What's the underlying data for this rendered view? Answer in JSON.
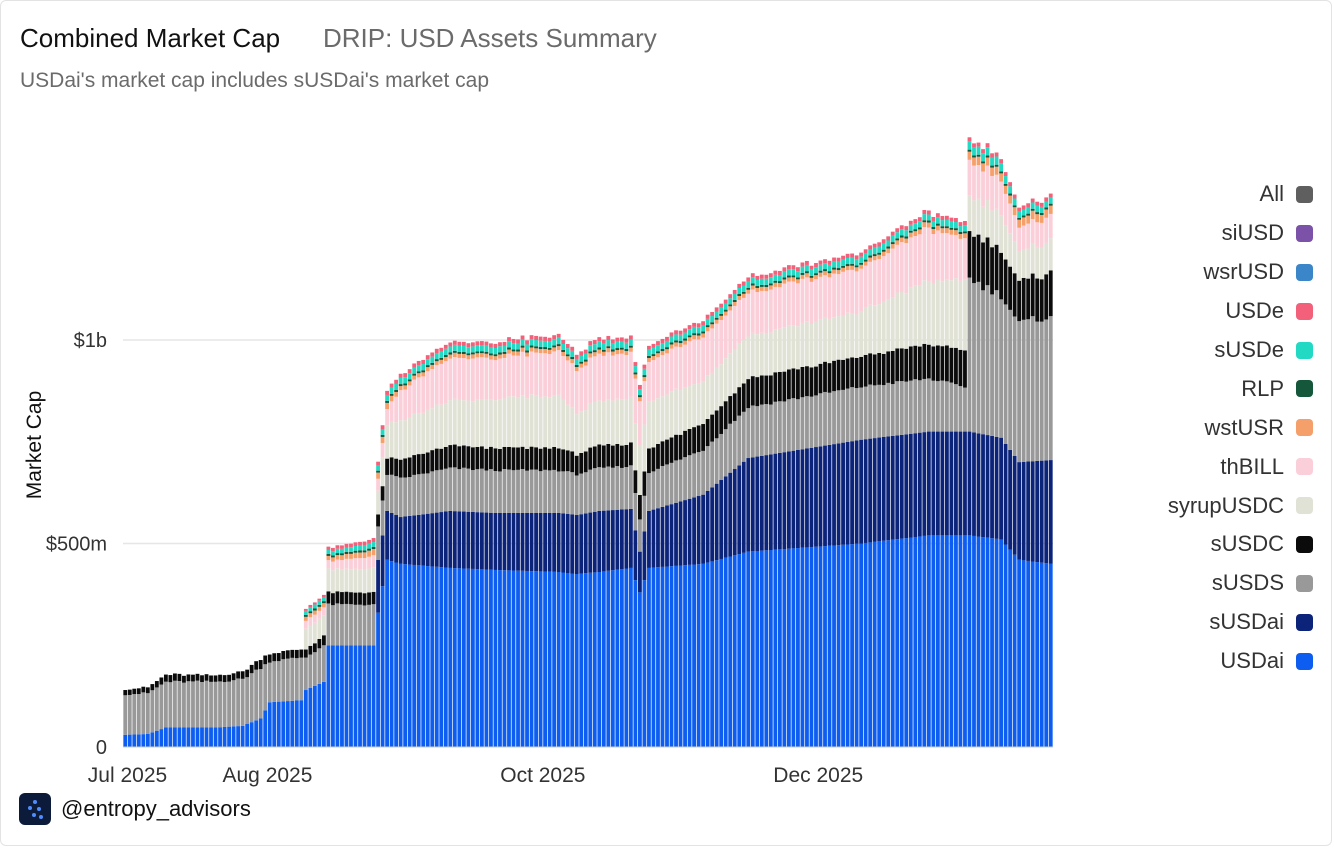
{
  "header": {
    "title": "Combined Market Cap",
    "subtitle": "DRIP: USD Assets Summary",
    "note": "USDai's market cap includes sUSDai's market cap"
  },
  "footer": {
    "handle": "@entropy_advisors",
    "logo_icon": "entropy-logo-icon"
  },
  "legend": [
    {
      "label": "All",
      "color": "#5f5f5f"
    },
    {
      "label": "siUSD",
      "color": "#7b52a8"
    },
    {
      "label": "wsrUSD",
      "color": "#3a86c8"
    },
    {
      "label": "USDe",
      "color": "#f2607a"
    },
    {
      "label": "sUSDe",
      "color": "#22d9c4"
    },
    {
      "label": "RLP",
      "color": "#14573a"
    },
    {
      "label": "wstUSR",
      "color": "#f5a06a"
    },
    {
      "label": "thBILL",
      "color": "#fbcfd9"
    },
    {
      "label": "syrupUSDC",
      "color": "#e1e2d6"
    },
    {
      "label": "sUSDC",
      "color": "#0b0b0b"
    },
    {
      "label": "sUSDS",
      "color": "#999999"
    },
    {
      "label": "sUSDai",
      "color": "#0c237a"
    },
    {
      "label": "USDai",
      "color": "#0d5ef0"
    }
  ],
  "chart_data": {
    "type": "bar",
    "stacked": true,
    "title": "Combined Market Cap",
    "xlabel": "",
    "ylabel": "Market Cap",
    "ylim": [
      0,
      1500
    ],
    "yunit": "$M",
    "yticks": [
      {
        "value": 0,
        "label": "0"
      },
      {
        "value": 500,
        "label": "$500m"
      },
      {
        "value": 1000,
        "label": "$1b"
      }
    ],
    "xticks": [
      {
        "value": "2025-07-01",
        "label": "Jul 2025"
      },
      {
        "value": "2025-08-01",
        "label": "Aug 2025"
      },
      {
        "value": "2025-10-01",
        "label": "Oct 2025"
      },
      {
        "value": "2025-12-01",
        "label": "Dec 2025"
      }
    ],
    "x_start": "2025-06-30",
    "x_end": "2026-01-21",
    "keypoints": [
      {
        "date": "2025-06-30",
        "USDai": 30,
        "sUSDai": 0,
        "sUSDS": 100,
        "sUSDC": 13,
        "syrupUSDC": 0,
        "thBILL": 0,
        "wstUSR": 0,
        "RLP": 0,
        "sUSDe": 0,
        "USDe": 0,
        "wsrUSD": 0,
        "siUSD": 0,
        "All": 0
      },
      {
        "date": "2025-07-05",
        "USDai": 32,
        "sUSDai": 0,
        "sUSDS": 100,
        "sUSDC": 14,
        "syrupUSDC": 0,
        "thBILL": 0,
        "wstUSR": 0,
        "RLP": 0,
        "sUSDe": 0,
        "USDe": 0,
        "wsrUSD": 0,
        "siUSD": 0,
        "All": 0
      },
      {
        "date": "2025-07-09",
        "USDai": 48,
        "sUSDai": 0,
        "sUSDS": 112,
        "sUSDC": 18,
        "syrupUSDC": 0,
        "thBILL": 0,
        "wstUSR": 0,
        "RLP": 0,
        "sUSDe": 0,
        "USDe": 0,
        "wsrUSD": 0,
        "siUSD": 0,
        "All": 0
      },
      {
        "date": "2025-07-20",
        "USDai": 48,
        "sUSDai": 0,
        "sUSDS": 112,
        "sUSDC": 16,
        "syrupUSDC": 0,
        "thBILL": 0,
        "wstUSR": 0,
        "RLP": 0,
        "sUSDe": 0,
        "USDe": 0,
        "wsrUSD": 0,
        "siUSD": 0,
        "All": 0
      },
      {
        "date": "2025-07-26",
        "USDai": 52,
        "sUSDai": 0,
        "sUSDS": 115,
        "sUSDC": 18,
        "syrupUSDC": 0,
        "thBILL": 0,
        "wstUSR": 0,
        "RLP": 0,
        "sUSDe": 0,
        "USDe": 0,
        "wsrUSD": 0,
        "siUSD": 0,
        "All": 0
      },
      {
        "date": "2025-07-30",
        "USDai": 70,
        "sUSDai": 0,
        "sUSDS": 125,
        "sUSDC": 22,
        "syrupUSDC": 0,
        "thBILL": 0,
        "wstUSR": 0,
        "RLP": 0,
        "sUSDe": 0,
        "USDe": 0,
        "wsrUSD": 0,
        "siUSD": 0,
        "All": 0
      },
      {
        "date": "2025-08-01",
        "USDai": 110,
        "sUSDai": 0,
        "sUSDS": 100,
        "sUSDC": 20,
        "syrupUSDC": 0,
        "thBILL": 0,
        "wstUSR": 0,
        "RLP": 0,
        "sUSDe": 0,
        "USDe": 0,
        "wsrUSD": 0,
        "siUSD": 0,
        "All": 0
      },
      {
        "date": "2025-08-08",
        "USDai": 115,
        "sUSDai": 0,
        "sUSDS": 105,
        "sUSDC": 20,
        "syrupUSDC": 0,
        "thBILL": 0,
        "wstUSR": 0,
        "RLP": 0,
        "sUSDe": 0,
        "USDe": 0,
        "wsrUSD": 0,
        "siUSD": 0,
        "All": 0
      },
      {
        "date": "2025-08-09",
        "USDai": 140,
        "sUSDai": 0,
        "sUSDS": 80,
        "sUSDC": 20,
        "syrupUSDC": 50,
        "thBILL": 20,
        "wstUSR": 10,
        "RLP": 5,
        "sUSDe": 10,
        "USDe": 5,
        "wsrUSD": 0,
        "siUSD": 0,
        "All": 0
      },
      {
        "date": "2025-08-13",
        "USDai": 160,
        "sUSDai": 0,
        "sUSDS": 90,
        "sUSDC": 25,
        "syrupUSDC": 50,
        "thBILL": 20,
        "wstUSR": 10,
        "RLP": 5,
        "sUSDe": 10,
        "USDe": 5,
        "wsrUSD": 0,
        "siUSD": 0,
        "All": 0
      },
      {
        "date": "2025-08-14",
        "USDai": 250,
        "sUSDai": 0,
        "sUSDS": 100,
        "sUSDC": 30,
        "syrupUSDC": 55,
        "thBILL": 20,
        "wstUSR": 10,
        "RLP": 5,
        "sUSDe": 10,
        "USDe": 8,
        "wsrUSD": 0,
        "siUSD": 0,
        "All": 0
      },
      {
        "date": "2025-08-24",
        "USDai": 250,
        "sUSDai": 0,
        "sUSDS": 100,
        "sUSDC": 30,
        "syrupUSDC": 60,
        "thBILL": 30,
        "wstUSR": 15,
        "RLP": 5,
        "sUSDe": 12,
        "USDe": 10,
        "wsrUSD": 0,
        "siUSD": 0,
        "All": 0
      },
      {
        "date": "2025-08-25",
        "USDai": 330,
        "sUSDai": 130,
        "sUSDS": 80,
        "sUSDC": 30,
        "syrupUSDC": 60,
        "thBILL": 30,
        "wstUSR": 15,
        "RLP": 5,
        "sUSDe": 12,
        "USDe": 10,
        "wsrUSD": 0,
        "siUSD": 0,
        "All": 0
      },
      {
        "date": "2025-08-27",
        "USDai": 460,
        "sUSDai": 120,
        "sUSDS": 90,
        "sUSDC": 40,
        "syrupUSDC": 80,
        "thBILL": 40,
        "wstUSR": 15,
        "RLP": 5,
        "sUSDe": 15,
        "USDe": 10,
        "wsrUSD": 0,
        "siUSD": 0,
        "All": 0
      },
      {
        "date": "2025-08-30",
        "USDai": 450,
        "sUSDai": 115,
        "sUSDS": 95,
        "sUSDC": 45,
        "syrupUSDC": 95,
        "thBILL": 75,
        "wstUSR": 10,
        "RLP": 5,
        "sUSDe": 15,
        "USDe": 10,
        "wsrUSD": 0,
        "siUSD": 0,
        "All": 0
      },
      {
        "date": "2025-09-10",
        "USDai": 440,
        "sUSDai": 140,
        "sUSDS": 105,
        "sUSDC": 55,
        "syrupUSDC": 110,
        "thBILL": 105,
        "wstUSR": 10,
        "RLP": 5,
        "sUSDe": 15,
        "USDe": 10,
        "wsrUSD": 0,
        "siUSD": 0,
        "All": 0
      },
      {
        "date": "2025-09-20",
        "USDai": 435,
        "sUSDai": 140,
        "sUSDS": 105,
        "sUSDC": 55,
        "syrupUSDC": 120,
        "thBILL": 100,
        "wstUSR": 10,
        "RLP": 5,
        "sUSDe": 15,
        "USDe": 10,
        "wsrUSD": 0,
        "siUSD": 0,
        "All": 0
      },
      {
        "date": "2025-10-04",
        "USDai": 430,
        "sUSDai": 145,
        "sUSDS": 105,
        "sUSDC": 55,
        "syrupUSDC": 130,
        "thBILL": 110,
        "wstUSR": 10,
        "RLP": 5,
        "sUSDe": 15,
        "USDe": 10,
        "wsrUSD": 0,
        "siUSD": 0,
        "All": 0
      },
      {
        "date": "2025-10-08",
        "USDai": 425,
        "sUSDai": 145,
        "sUSDS": 100,
        "sUSDC": 50,
        "syrupUSDC": 100,
        "thBILL": 105,
        "wstUSR": 10,
        "RLP": 5,
        "sUSDe": 15,
        "USDe": 10,
        "wsrUSD": 0,
        "siUSD": 0,
        "All": 0
      },
      {
        "date": "2025-10-13",
        "USDai": 430,
        "sUSDai": 150,
        "sUSDS": 105,
        "sUSDC": 55,
        "syrupUSDC": 110,
        "thBILL": 115,
        "wstUSR": 10,
        "RLP": 5,
        "sUSDe": 15,
        "USDe": 10,
        "wsrUSD": 0,
        "siUSD": 0,
        "All": 0
      },
      {
        "date": "2025-10-20",
        "USDai": 440,
        "sUSDai": 145,
        "sUSDS": 105,
        "sUSDC": 55,
        "syrupUSDC": 110,
        "thBILL": 110,
        "wstUSR": 10,
        "RLP": 5,
        "sUSDe": 15,
        "USDe": 10,
        "wsrUSD": 0,
        "siUSD": 0,
        "All": 0
      },
      {
        "date": "2025-10-22",
        "USDai": 380,
        "sUSDai": 100,
        "sUSDS": 80,
        "sUSDC": 60,
        "syrupUSDC": 120,
        "thBILL": 110,
        "wstUSR": 10,
        "RLP": 5,
        "sUSDe": 15,
        "USDe": 10,
        "wsrUSD": 0,
        "siUSD": 0,
        "All": 0
      },
      {
        "date": "2025-10-24",
        "USDai": 440,
        "sUSDai": 140,
        "sUSDS": 95,
        "sUSDC": 60,
        "syrupUSDC": 115,
        "thBILL": 100,
        "wstUSR": 10,
        "RLP": 5,
        "sUSDe": 15,
        "USDe": 10,
        "wsrUSD": 0,
        "siUSD": 0,
        "All": 0
      },
      {
        "date": "2025-11-05",
        "USDai": 450,
        "sUSDai": 170,
        "sUSDS": 110,
        "sUSDC": 65,
        "syrupUSDC": 105,
        "thBILL": 110,
        "wstUSR": 10,
        "RLP": 5,
        "sUSDe": 15,
        "USDe": 10,
        "wsrUSD": 0,
        "siUSD": 0,
        "All": 0
      },
      {
        "date": "2025-11-15",
        "USDai": 480,
        "sUSDai": 230,
        "sUSDS": 125,
        "sUSDC": 70,
        "syrupUSDC": 105,
        "thBILL": 105,
        "wstUSR": 10,
        "RLP": 5,
        "sUSDe": 15,
        "USDe": 10,
        "wsrUSD": 0,
        "siUSD": 0,
        "All": 0
      },
      {
        "date": "2025-12-10",
        "USDai": 500,
        "sUSDai": 255,
        "sUSDS": 130,
        "sUSDC": 75,
        "syrupUSDC": 110,
        "thBILL": 105,
        "wstUSR": 10,
        "RLP": 5,
        "sUSDe": 15,
        "USDe": 10,
        "wsrUSD": 0,
        "siUSD": 0,
        "All": 0
      },
      {
        "date": "2025-12-25",
        "USDai": 520,
        "sUSDai": 255,
        "sUSDS": 130,
        "sUSDC": 85,
        "syrupUSDC": 155,
        "thBILL": 130,
        "wstUSR": 12,
        "RLP": 5,
        "sUSDe": 15,
        "USDe": 10,
        "wsrUSD": 0,
        "siUSD": 0,
        "All": 0
      },
      {
        "date": "2026-01-02",
        "USDai": 520,
        "sUSDai": 255,
        "sUSDS": 110,
        "sUSDC": 90,
        "syrupUSDC": 170,
        "thBILL": 100,
        "wstUSR": 12,
        "RLP": 5,
        "sUSDe": 15,
        "USDe": 10,
        "wsrUSD": 0,
        "siUSD": 0,
        "All": 0
      },
      {
        "date": "2026-01-03",
        "USDai": 520,
        "sUSDai": 255,
        "sUSDS": 375,
        "sUSDC": 115,
        "syrupUSDC": 90,
        "thBILL": 85,
        "wstUSR": 20,
        "RLP": 5,
        "sUSDe": 20,
        "USDe": 10,
        "wsrUSD": 0,
        "siUSD": 0,
        "All": 0
      },
      {
        "date": "2026-01-10",
        "USDai": 510,
        "sUSDai": 250,
        "sUSDS": 350,
        "sUSDC": 115,
        "syrupUSDC": 90,
        "thBILL": 85,
        "wstUSR": 20,
        "RLP": 5,
        "sUSDe": 20,
        "USDe": 10,
        "wsrUSD": 0,
        "siUSD": 0,
        "All": 0
      },
      {
        "date": "2026-01-14",
        "USDai": 460,
        "sUSDai": 240,
        "sUSDS": 340,
        "sUSDC": 100,
        "syrupUSDC": 70,
        "thBILL": 60,
        "wstUSR": 20,
        "RLP": 5,
        "sUSDe": 15,
        "USDe": 10,
        "wsrUSD": 0,
        "siUSD": 0,
        "All": 0
      },
      {
        "date": "2026-01-21",
        "USDai": 450,
        "sUSDai": 255,
        "sUSDS": 355,
        "sUSDC": 110,
        "syrupUSDC": 80,
        "thBILL": 60,
        "wstUSR": 20,
        "RLP": 5,
        "sUSDe": 15,
        "USDe": 10,
        "wsrUSD": 0,
        "siUSD": 0,
        "All": 0
      }
    ]
  }
}
